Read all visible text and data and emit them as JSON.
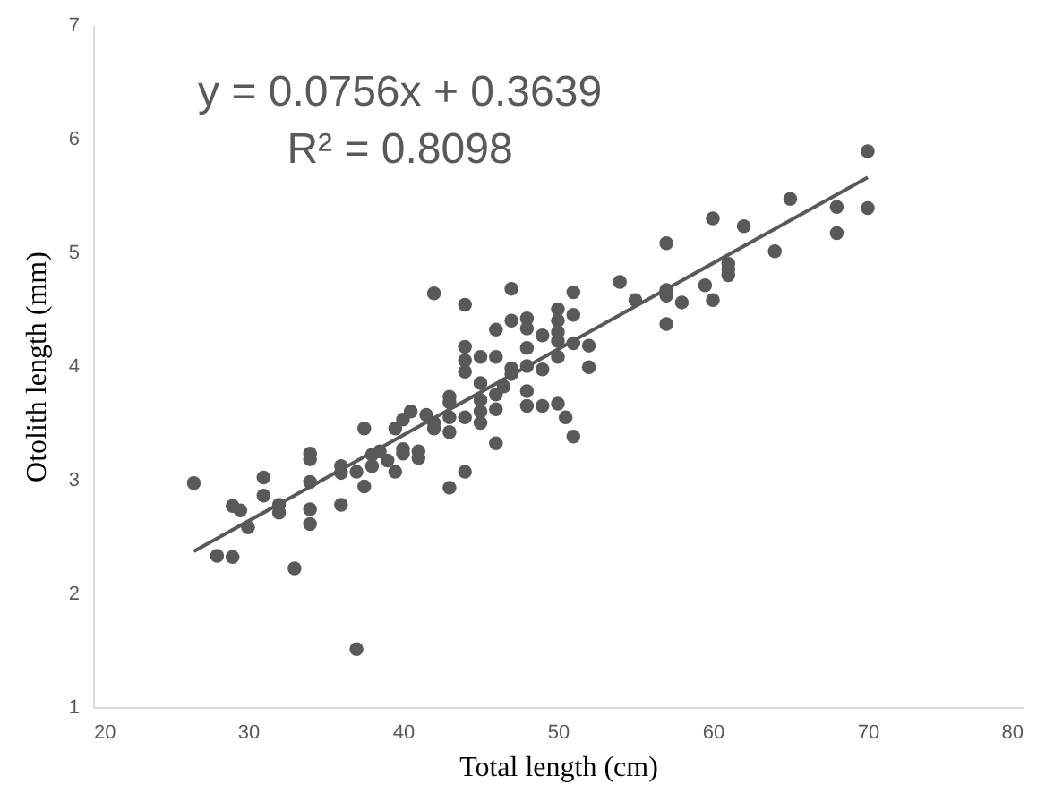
{
  "chart_data": {
    "type": "scatter",
    "xlabel": "Total length (cm)",
    "ylabel": "Otolith length (mm)",
    "annotations": [
      "y = 0.0756x + 0.3639",
      "R² = 0.8098"
    ],
    "xlim": [
      20,
      80
    ],
    "ylim": [
      1,
      7
    ],
    "xticks": [
      20,
      30,
      40,
      50,
      60,
      70,
      80
    ],
    "yticks": [
      1,
      2,
      3,
      4,
      5,
      6,
      7
    ],
    "grid": false,
    "series": [
      {
        "marker": "circle",
        "color": "#595959",
        "x": [
          26.5,
          28,
          29,
          29,
          29.5,
          30,
          31,
          31,
          32,
          32,
          33,
          34,
          34,
          34,
          34,
          34,
          36,
          36,
          36,
          37,
          37,
          37.5,
          37.5,
          38,
          38,
          38.5,
          39,
          39.5,
          39.5,
          40,
          40,
          40,
          40.5,
          41,
          41,
          41.5,
          42,
          42,
          42,
          43,
          43,
          43,
          43,
          43,
          44,
          44,
          44,
          44,
          44,
          44,
          45,
          45,
          45,
          45,
          45,
          46,
          46,
          46,
          46,
          46,
          46.5,
          47,
          47,
          47,
          47,
          48,
          48,
          48,
          48,
          48,
          48,
          49,
          49,
          49,
          50,
          50,
          50,
          50,
          50,
          50,
          50.5,
          51,
          51,
          51,
          51,
          52,
          52,
          54,
          55,
          57,
          57,
          57,
          57,
          58,
          59.5,
          60,
          60,
          61,
          61,
          61,
          62,
          64,
          65,
          68,
          68,
          70,
          70
        ],
        "values": [
          2.97,
          2.33,
          2.77,
          2.32,
          2.73,
          2.58,
          3.02,
          2.86,
          2.78,
          2.71,
          2.22,
          3.23,
          3.18,
          2.98,
          2.74,
          2.61,
          3.12,
          3.06,
          2.78,
          1.51,
          3.07,
          3.45,
          2.94,
          3.22,
          3.12,
          3.25,
          3.17,
          3.45,
          3.07,
          3.53,
          3.27,
          3.23,
          3.6,
          3.25,
          3.19,
          3.57,
          3.5,
          4.64,
          3.45,
          3.73,
          3.68,
          3.55,
          3.42,
          2.93,
          4.54,
          4.17,
          4.05,
          3.95,
          3.55,
          3.07,
          4.08,
          3.85,
          3.7,
          3.6,
          3.5,
          4.32,
          4.08,
          3.75,
          3.62,
          3.32,
          3.82,
          4.68,
          4.4,
          3.98,
          3.93,
          4.42,
          4.33,
          4.16,
          4.0,
          3.78,
          3.65,
          4.27,
          3.97,
          3.65,
          4.5,
          4.4,
          4.3,
          4.22,
          4.08,
          3.67,
          3.55,
          4.65,
          4.45,
          4.2,
          3.38,
          4.18,
          3.99,
          4.74,
          4.58,
          5.08,
          4.67,
          4.62,
          4.37,
          4.56,
          4.71,
          5.3,
          4.58,
          4.9,
          4.85,
          4.8,
          5.23,
          5.01,
          5.47,
          5.4,
          5.17,
          5.89,
          5.39
        ]
      },
      {
        "type": "line",
        "color": "#595959",
        "x": [
          26.5,
          70
        ],
        "values": [
          2.37,
          5.66
        ]
      }
    ]
  }
}
